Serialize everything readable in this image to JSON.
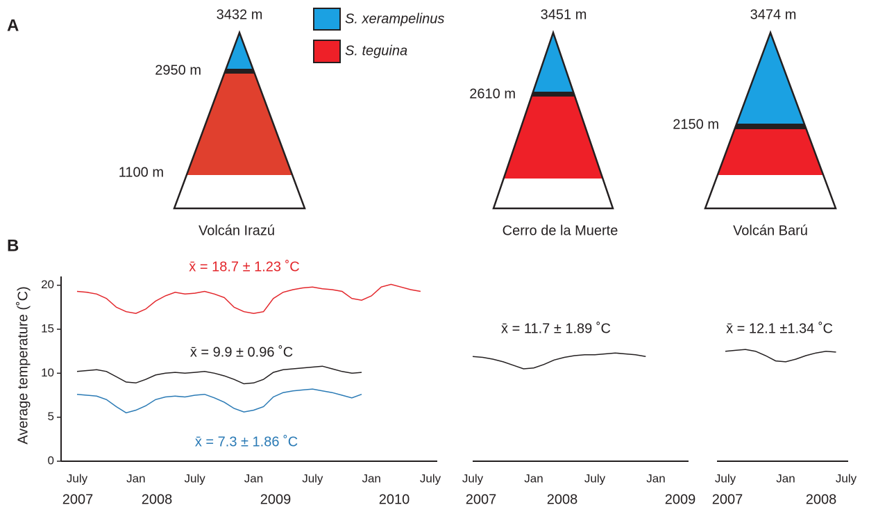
{
  "panel_a": {
    "label": "A",
    "legend": [
      {
        "name": "S. xerampelinus",
        "color": "#1ba1e2"
      },
      {
        "name": "S. teguina",
        "color": "#ee2028"
      }
    ],
    "mountains": [
      {
        "name": "Volcán Irazú",
        "summit": "3432 m",
        "boundary": "2950 m",
        "lower_limit": "1100 m"
      },
      {
        "name": "Cerro de la Muerte",
        "summit": "3451 m",
        "boundary": "2610 m"
      },
      {
        "name": "Volcán Barú",
        "summit": "3474 m",
        "boundary": "2150 m"
      }
    ]
  },
  "panel_b_label": "B",
  "chart_data": [
    {
      "type": "line",
      "ylabel": "Average temperature (˚C)",
      "xlim": [
        "2007-07",
        "2010-07"
      ],
      "xticks": [
        {
          "value": "2007-07",
          "label": "July"
        },
        {
          "value": "2008-01",
          "label": "Jan"
        },
        {
          "value": "2008-07",
          "label": "July"
        },
        {
          "value": "2009-01",
          "label": "Jan"
        },
        {
          "value": "2009-07",
          "label": "July"
        },
        {
          "value": "2010-01",
          "label": "Jan"
        },
        {
          "value": "2010-07",
          "label": "July"
        }
      ],
      "years": [
        "2007",
        "2008",
        "2009",
        "2010"
      ],
      "ylim": [
        0,
        21
      ],
      "yticks": [
        0,
        5,
        10,
        15,
        20
      ],
      "series": [
        {
          "color": "#e3262b",
          "annotation": "x̄ = 18.7 ± 1.23 ˚C",
          "x": [
            "2007-07",
            "2007-08",
            "2007-09",
            "2007-10",
            "2007-11",
            "2007-12",
            "2008-01",
            "2008-02",
            "2008-03",
            "2008-04",
            "2008-05",
            "2008-06",
            "2008-07",
            "2008-08",
            "2008-09",
            "2008-10",
            "2008-11",
            "2008-12",
            "2009-01",
            "2009-02",
            "2009-03",
            "2009-04",
            "2009-05",
            "2009-06",
            "2009-07",
            "2009-08",
            "2009-09",
            "2009-10",
            "2009-11",
            "2009-12",
            "2010-01",
            "2010-02",
            "2010-03",
            "2010-04",
            "2010-05",
            "2010-06"
          ],
          "values": [
            19.3,
            19.2,
            19.0,
            18.5,
            17.5,
            17.0,
            16.8,
            17.3,
            18.2,
            18.8,
            19.2,
            19.0,
            19.1,
            19.3,
            19.0,
            18.6,
            17.5,
            17.0,
            16.8,
            17.0,
            18.5,
            19.2,
            19.5,
            19.7,
            19.8,
            19.6,
            19.5,
            19.3,
            18.5,
            18.3,
            18.8,
            19.8,
            20.1,
            19.8,
            19.5,
            19.3
          ]
        },
        {
          "color": "#231f20",
          "annotation": "x̄ = 9.9 ± 0.96 ˚C",
          "x": [
            "2007-07",
            "2007-08",
            "2007-09",
            "2007-10",
            "2007-11",
            "2007-12",
            "2008-01",
            "2008-02",
            "2008-03",
            "2008-04",
            "2008-05",
            "2008-06",
            "2008-07",
            "2008-08",
            "2008-09",
            "2008-10",
            "2008-11",
            "2008-12",
            "2009-01",
            "2009-02",
            "2009-03",
            "2009-04",
            "2009-05",
            "2009-06",
            "2009-07",
            "2009-08",
            "2009-09",
            "2009-10",
            "2009-11",
            "2009-12"
          ],
          "values": [
            10.2,
            10.3,
            10.4,
            10.2,
            9.6,
            9.0,
            8.9,
            9.3,
            9.8,
            10.0,
            10.1,
            10.0,
            10.1,
            10.2,
            10.0,
            9.7,
            9.3,
            8.8,
            8.9,
            9.3,
            10.1,
            10.4,
            10.5,
            10.6,
            10.7,
            10.8,
            10.5,
            10.2,
            10.0,
            10.1
          ]
        },
        {
          "color": "#2a7ab5",
          "annotation": "x̄ = 7.3 ± 1.86 ˚C",
          "x": [
            "2007-07",
            "2007-08",
            "2007-09",
            "2007-10",
            "2007-11",
            "2007-12",
            "2008-01",
            "2008-02",
            "2008-03",
            "2008-04",
            "2008-05",
            "2008-06",
            "2008-07",
            "2008-08",
            "2008-09",
            "2008-10",
            "2008-11",
            "2008-12",
            "2009-01",
            "2009-02",
            "2009-03",
            "2009-04",
            "2009-05",
            "2009-06",
            "2009-07",
            "2009-08",
            "2009-09",
            "2009-10",
            "2009-11",
            "2009-12"
          ],
          "values": [
            7.6,
            7.5,
            7.4,
            7.0,
            6.2,
            5.5,
            5.8,
            6.3,
            7.0,
            7.3,
            7.4,
            7.3,
            7.5,
            7.6,
            7.2,
            6.7,
            6.0,
            5.6,
            5.8,
            6.2,
            7.3,
            7.8,
            8.0,
            8.1,
            8.2,
            8.0,
            7.8,
            7.5,
            7.2,
            7.6
          ]
        }
      ]
    },
    {
      "type": "line",
      "xlim": [
        "2007-07",
        "2009-04"
      ],
      "xticks": [
        {
          "value": "2007-07",
          "label": "July"
        },
        {
          "value": "2008-01",
          "label": "Jan"
        },
        {
          "value": "2008-07",
          "label": "July"
        },
        {
          "value": "2009-01",
          "label": "Jan"
        }
      ],
      "years": [
        "2007",
        "2008",
        "2009"
      ],
      "ylim": [
        0,
        21
      ],
      "series": [
        {
          "color": "#231f20",
          "annotation": "x̄ = 11.7 ± 1.89 ˚C",
          "x": [
            "2007-07",
            "2007-08",
            "2007-09",
            "2007-10",
            "2007-11",
            "2007-12",
            "2008-01",
            "2008-02",
            "2008-03",
            "2008-04",
            "2008-05",
            "2008-06",
            "2008-07",
            "2008-08",
            "2008-09",
            "2008-10",
            "2008-11",
            "2008-12"
          ],
          "values": [
            11.9,
            11.8,
            11.6,
            11.3,
            10.9,
            10.5,
            10.6,
            11.0,
            11.5,
            11.8,
            12.0,
            12.1,
            12.1,
            12.2,
            12.3,
            12.2,
            12.1,
            11.9
          ]
        }
      ]
    },
    {
      "type": "line",
      "xlim": [
        "2007-07",
        "2008-07"
      ],
      "xticks": [
        {
          "value": "2007-07",
          "label": "July"
        },
        {
          "value": "2008-01",
          "label": "Jan"
        },
        {
          "value": "2008-07",
          "label": "July"
        }
      ],
      "years": [
        "2007",
        "2008"
      ],
      "ylim": [
        0,
        21
      ],
      "series": [
        {
          "color": "#231f20",
          "annotation": "x̄ = 12.1 ±1.34 ˚C",
          "x": [
            "2007-07",
            "2007-08",
            "2007-09",
            "2007-10",
            "2007-11",
            "2007-12",
            "2008-01",
            "2008-02",
            "2008-03",
            "2008-04",
            "2008-05",
            "2008-06"
          ],
          "values": [
            12.5,
            12.6,
            12.7,
            12.5,
            12.0,
            11.4,
            11.3,
            11.6,
            12.0,
            12.3,
            12.5,
            12.4
          ]
        }
      ]
    }
  ]
}
